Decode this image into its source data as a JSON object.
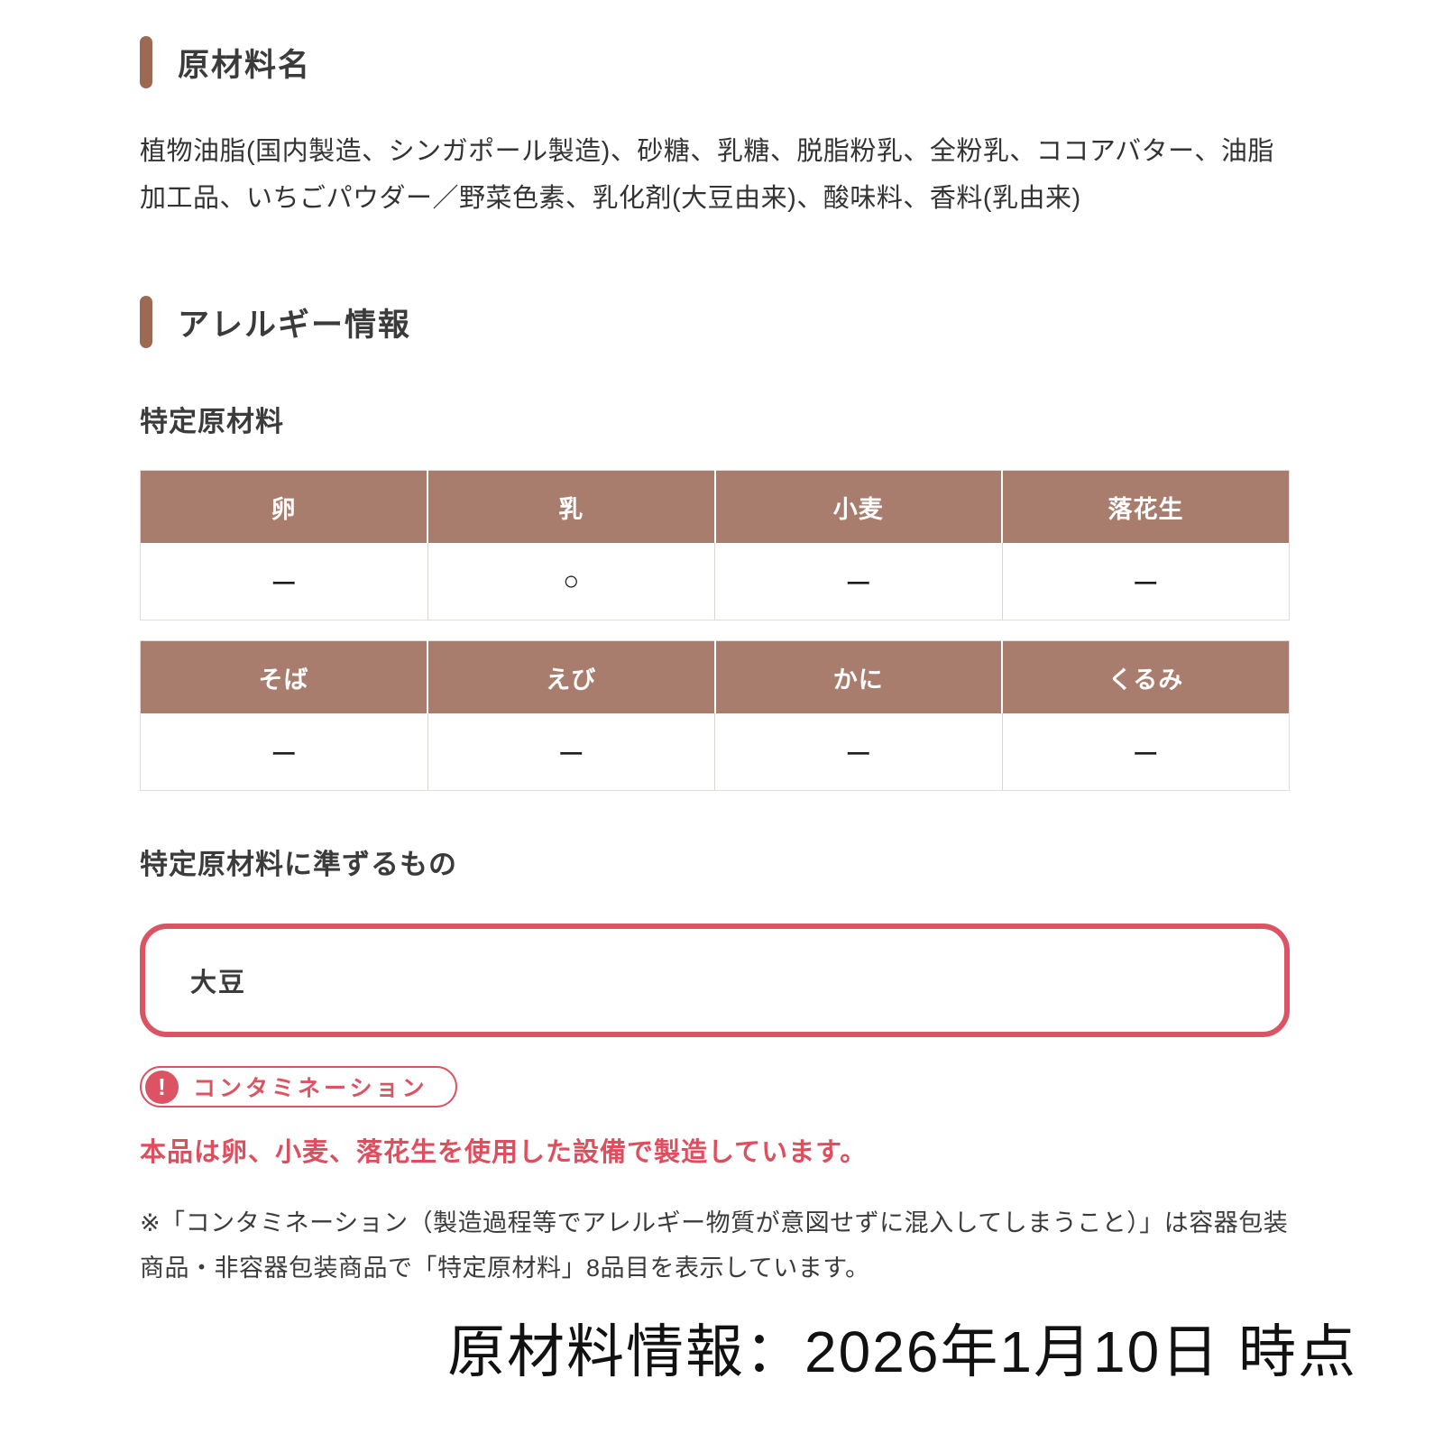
{
  "colors": {
    "accent_brown": "#9c6a53",
    "table_header_brown": "#a87d6e",
    "alert_red": "#dc5463",
    "text_dark": "#3b3b3b"
  },
  "ingredients": {
    "title": "原材料名",
    "body": "植物油脂(国内製造、シンガポール製造)、砂糖、乳糖、脱脂粉乳、全粉乳、ココアバター、油脂加工品、いちごパウダー／野菜色素、乳化剤(大豆由来)、酸味料、香料(乳由来)"
  },
  "allergy": {
    "title": "アレルギー情報",
    "specified_heading": "特定原材料",
    "tables": [
      {
        "headers": [
          "卵",
          "乳",
          "小麦",
          "落花生"
        ],
        "values": [
          "ー",
          "○",
          "ー",
          "ー"
        ]
      },
      {
        "headers": [
          "そば",
          "えび",
          "かに",
          "くるみ"
        ],
        "values": [
          "ー",
          "ー",
          "ー",
          "ー"
        ]
      }
    ],
    "quasi_heading": "特定原材料に準ずるもの",
    "quasi_value": "大豆",
    "contamination": {
      "badge_label": "コンタミネーション",
      "badge_icon": "!",
      "warning": "本品は卵、小麦、落花生を使用した設備で製造しています。",
      "note": "※「コンタミネーション（製造過程等でアレルギー物質が意図せずに混入してしまうこと）」は容器包装商品・非容器包装商品で「特定原材料」8品目を表示しています。"
    }
  },
  "footer": {
    "date_line": "原材料情報：2026年1月10日 時点"
  }
}
